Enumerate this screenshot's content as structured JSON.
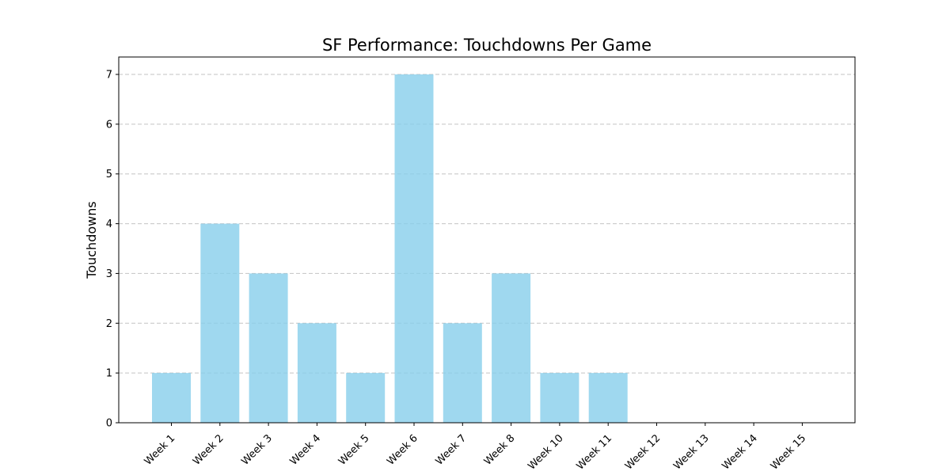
{
  "chart_data": {
    "type": "bar",
    "title": "SF Performance: Touchdowns Per Game",
    "xlabel": "",
    "ylabel": "Touchdowns",
    "categories": [
      "Week 1",
      "Week 2",
      "Week 3",
      "Week 4",
      "Week 5",
      "Week 6",
      "Week 7",
      "Week 8",
      "Week 10",
      "Week 11",
      "Week 12",
      "Week 13",
      "Week 14",
      "Week 15"
    ],
    "values": [
      1,
      4,
      3,
      2,
      1,
      7,
      2,
      3,
      1,
      1,
      0,
      0,
      0,
      0
    ],
    "ylim": [
      0,
      7.35
    ],
    "yticks": [
      "0",
      "1",
      "2",
      "3",
      "4",
      "5",
      "6",
      "7"
    ],
    "grid": "y-dashed",
    "bar_color": "#87ceeb",
    "legend": "none"
  }
}
